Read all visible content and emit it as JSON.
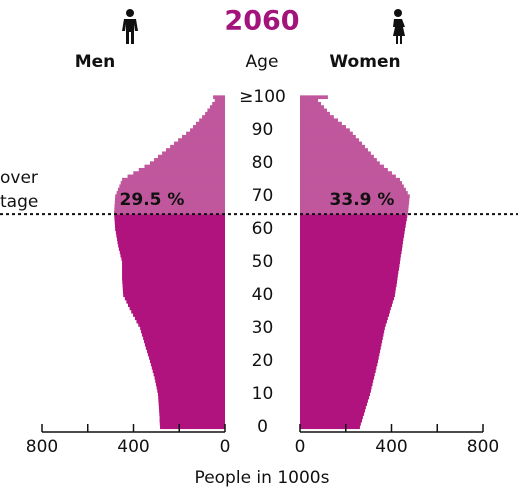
{
  "chart_data": {
    "type": "pyramid",
    "title": "2060",
    "age_label": "Age",
    "xlabel": "People in 1000s",
    "annotations": [
      "over",
      "tage"
    ],
    "threshold_age": 65,
    "ages": [
      0,
      1,
      2,
      3,
      4,
      5,
      6,
      7,
      8,
      9,
      10,
      11,
      12,
      13,
      14,
      15,
      16,
      17,
      18,
      19,
      20,
      21,
      22,
      23,
      24,
      25,
      26,
      27,
      28,
      29,
      30,
      31,
      32,
      33,
      34,
      35,
      36,
      37,
      38,
      39,
      40,
      41,
      42,
      43,
      44,
      45,
      46,
      47,
      48,
      49,
      50,
      51,
      52,
      53,
      54,
      55,
      56,
      57,
      58,
      59,
      60,
      61,
      62,
      63,
      64,
      65,
      66,
      67,
      68,
      69,
      70,
      71,
      72,
      73,
      74,
      75,
      76,
      77,
      78,
      79,
      80,
      81,
      82,
      83,
      84,
      85,
      86,
      87,
      88,
      89,
      90,
      91,
      92,
      93,
      94,
      95,
      96,
      97,
      98,
      99,
      100
    ],
    "series": [
      {
        "name": "Men",
        "side": "left",
        "color": "#b0127e",
        "color_upper": "#c0579d",
        "share_label": "29.5 %",
        "values": [
          284,
          285,
          286,
          286,
          287,
          288,
          289,
          290,
          291,
          292,
          293,
          296,
          299,
          302,
          305,
          308,
          312,
          316,
          320,
          324,
          328,
          332,
          337,
          341,
          346,
          350,
          354,
          358,
          363,
          367,
          371,
          379,
          387,
          394,
          402,
          410,
          417,
          424,
          431,
          438,
          445,
          446,
          447,
          448,
          449,
          450,
          450,
          450,
          450,
          450,
          450,
          453,
          457,
          460,
          464,
          467,
          470,
          472,
          475,
          477,
          480,
          481,
          482,
          483,
          484,
          485,
          484,
          483,
          482,
          481,
          480,
          474,
          468,
          462,
          456,
          450,
          426,
          401,
          377,
          352,
          328,
          310,
          293,
          275,
          258,
          240,
          223,
          205,
          188,
          170,
          153,
          140,
          127,
          113,
          100,
          87,
          77,
          66,
          56,
          45,
          52
        ]
      },
      {
        "name": "Women",
        "side": "right",
        "color": "#b0127e",
        "color_upper": "#c0579d",
        "share_label": "33.9 %",
        "values": [
          262,
          266,
          271,
          275,
          280,
          284,
          288,
          293,
          297,
          302,
          306,
          310,
          313,
          317,
          320,
          324,
          327,
          331,
          334,
          338,
          341,
          344,
          347,
          350,
          353,
          356,
          359,
          362,
          365,
          368,
          371,
          375,
          380,
          384,
          389,
          393,
          397,
          402,
          406,
          411,
          415,
          417,
          419,
          422,
          424,
          426,
          428,
          430,
          433,
          435,
          437,
          439,
          441,
          444,
          446,
          448,
          450,
          452,
          455,
          457,
          459,
          462,
          464,
          467,
          469,
          472,
          474,
          475,
          477,
          478,
          480,
          471,
          463,
          454,
          446,
          437,
          419,
          402,
          384,
          367,
          349,
          336,
          323,
          310,
          297,
          284,
          271,
          258,
          244,
          231,
          218,
          201,
          183,
          166,
          148,
          131,
          118,
          105,
          92,
          79,
          122
        ]
      }
    ],
    "xlim": [
      0,
      800
    ],
    "xticks": [
      0,
      400,
      800
    ],
    "xminor_ticks": [
      200,
      600
    ],
    "ylim": [
      0,
      100
    ],
    "yticks": [
      0,
      10,
      20,
      30,
      40,
      50,
      60,
      70,
      80,
      90,
      {
        "value": 100,
        "label": "≥100"
      }
    ],
    "title_color": "#a3137c"
  }
}
